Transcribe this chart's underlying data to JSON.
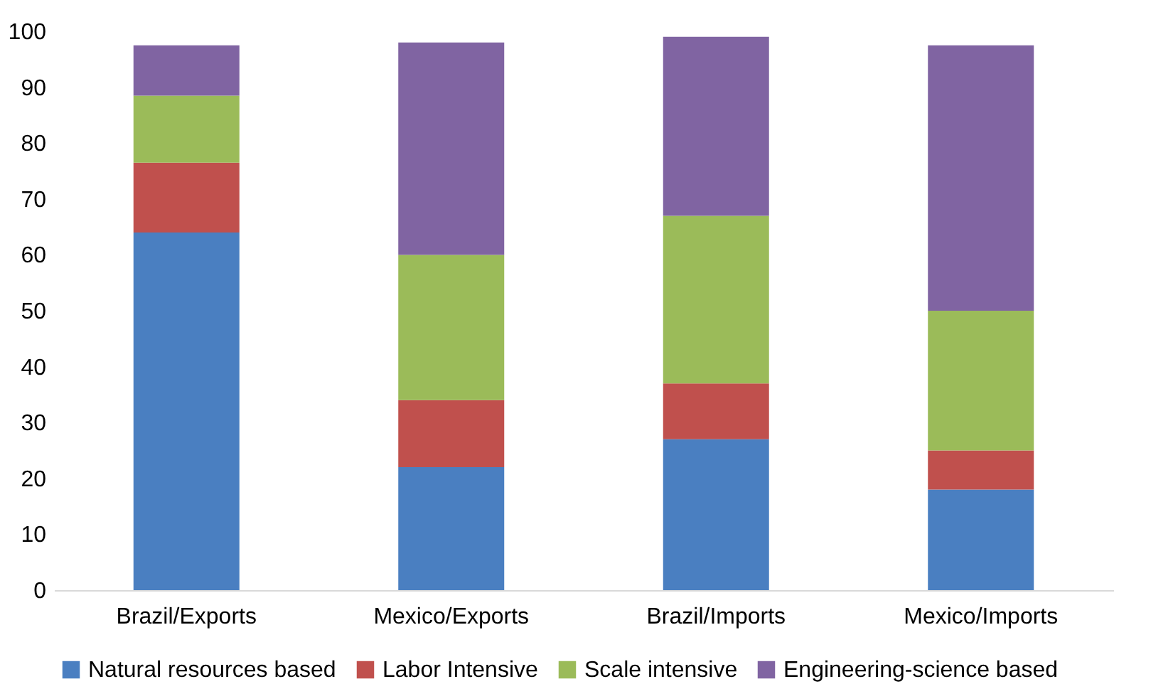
{
  "chart_data": {
    "type": "bar",
    "stacked": true,
    "categories": [
      "Brazil/Exports",
      "Mexico/Exports",
      "Brazil/Imports",
      "Mexico/Imports"
    ],
    "series": [
      {
        "name": "Natural resources based",
        "color": "#4a7fc1",
        "values": [
          64,
          22,
          27,
          18
        ]
      },
      {
        "name": "Labor Intensive",
        "color": "#c0504d",
        "values": [
          12.5,
          12,
          10,
          7
        ]
      },
      {
        "name": "Scale intensive",
        "color": "#9bbb59",
        "values": [
          12,
          26,
          30,
          25
        ]
      },
      {
        "name": "Engineering-science based",
        "color": "#8064a2",
        "values": [
          9,
          38,
          32,
          47.5
        ]
      }
    ],
    "ylim": [
      0,
      100
    ],
    "yticks": [
      0,
      10,
      20,
      30,
      40,
      50,
      60,
      70,
      80,
      90,
      100
    ],
    "grid": false,
    "legend": "bottom"
  }
}
